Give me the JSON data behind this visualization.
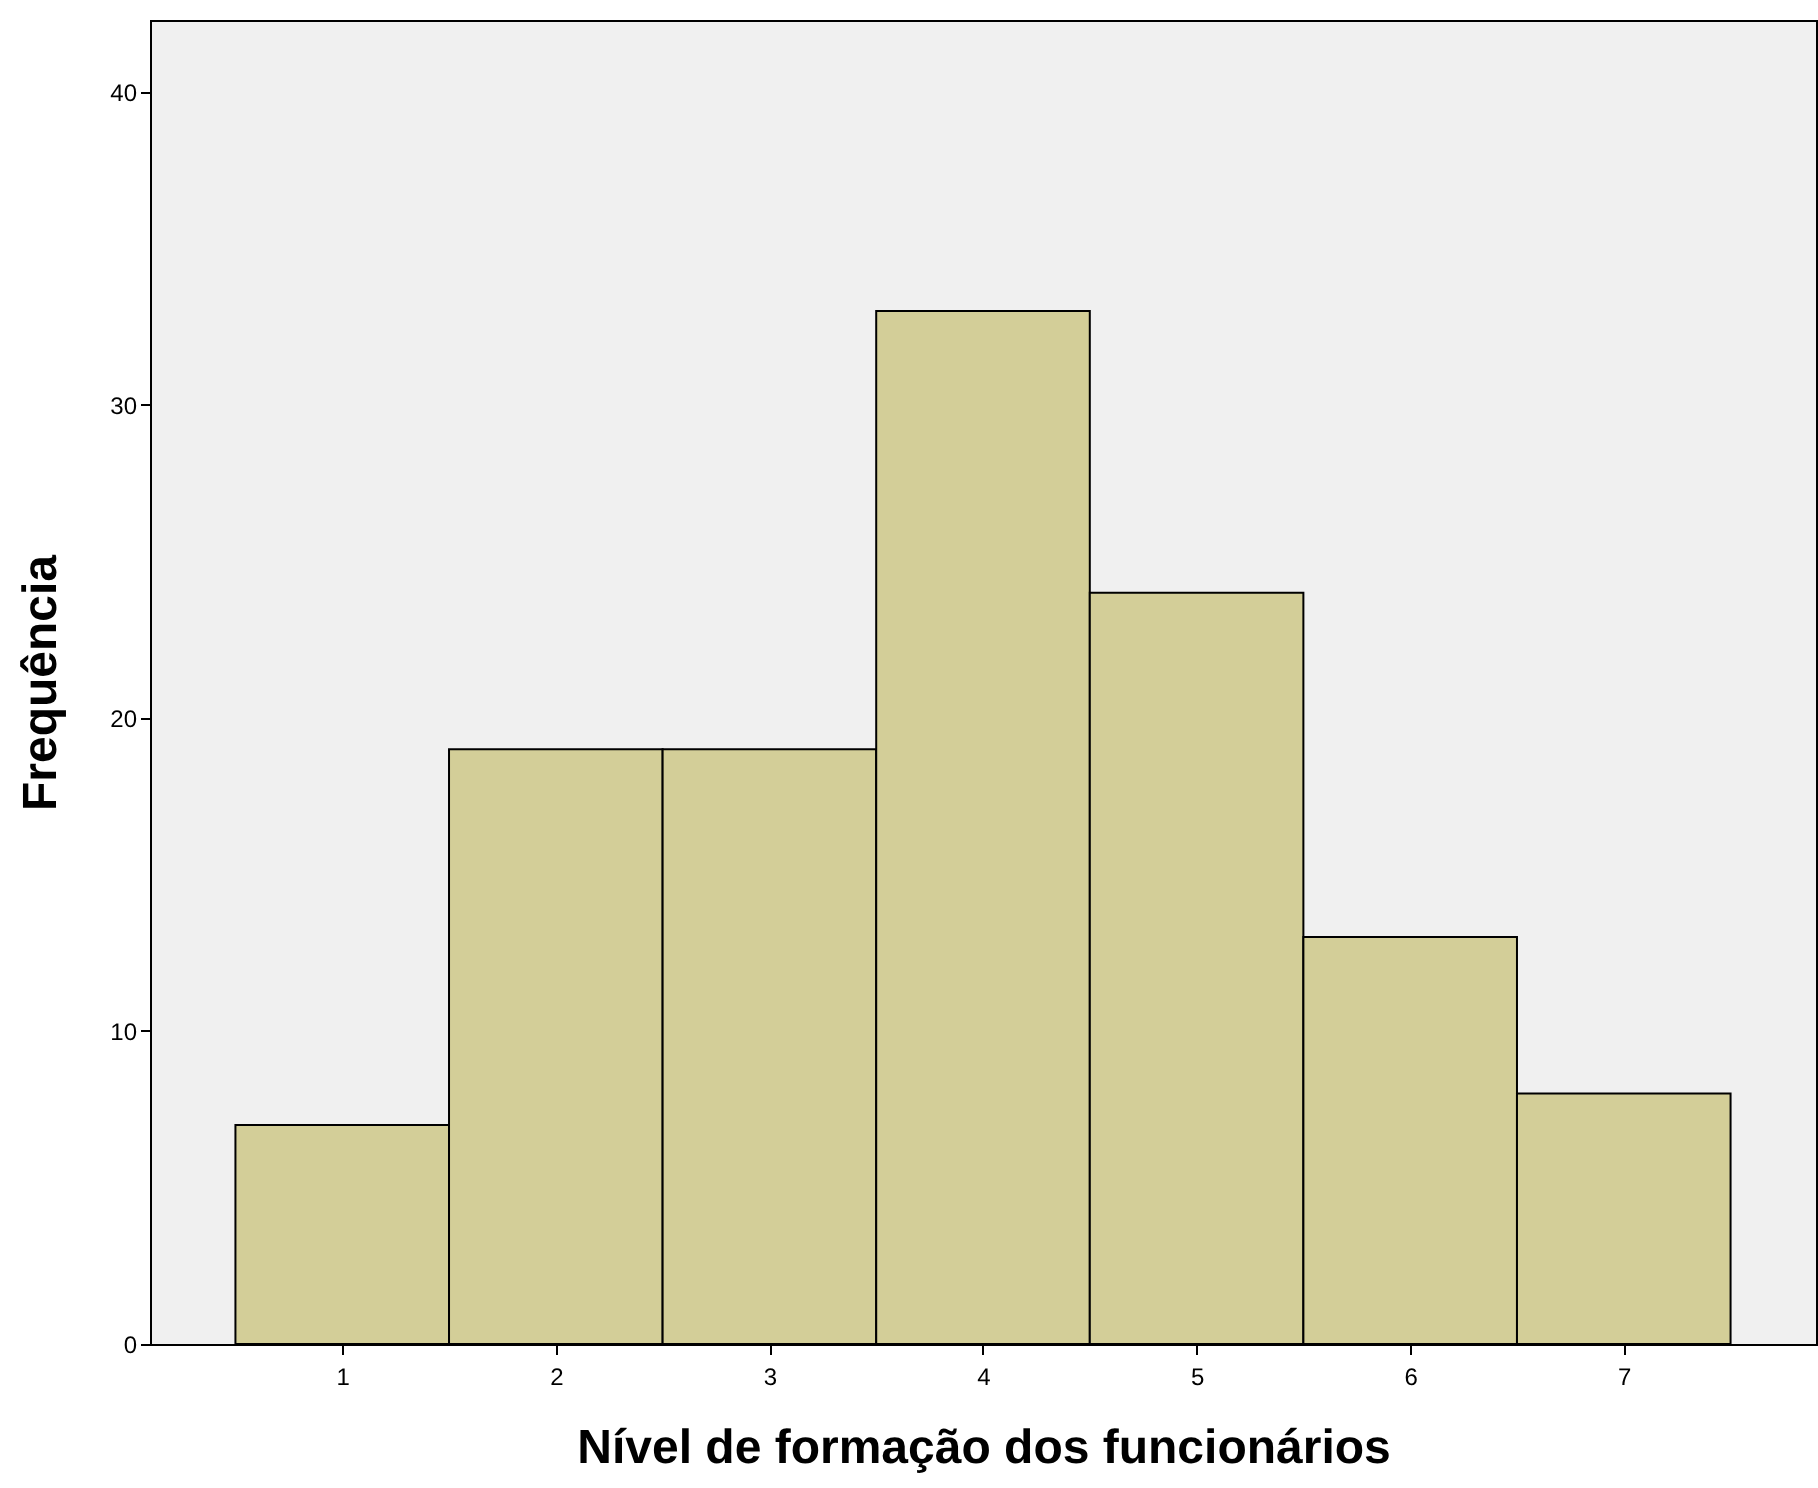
{
  "chart_data": {
    "type": "histogram",
    "xlabel": "Nível de formação dos funcionários",
    "ylabel": "Frequência",
    "bins": [
      0.5,
      1.5,
      2.5,
      3.5,
      4.5,
      5.5,
      6.5,
      7.5
    ],
    "values": [
      7,
      19,
      19,
      33,
      24,
      13,
      8
    ],
    "color": "#d3ce98",
    "xlim": [
      0.1,
      7.9
    ],
    "ylim": [
      0,
      42.3
    ],
    "xticks": [
      1,
      2,
      3,
      4,
      5,
      6,
      7
    ],
    "yticks": [
      0,
      10,
      20,
      30,
      40
    ]
  }
}
